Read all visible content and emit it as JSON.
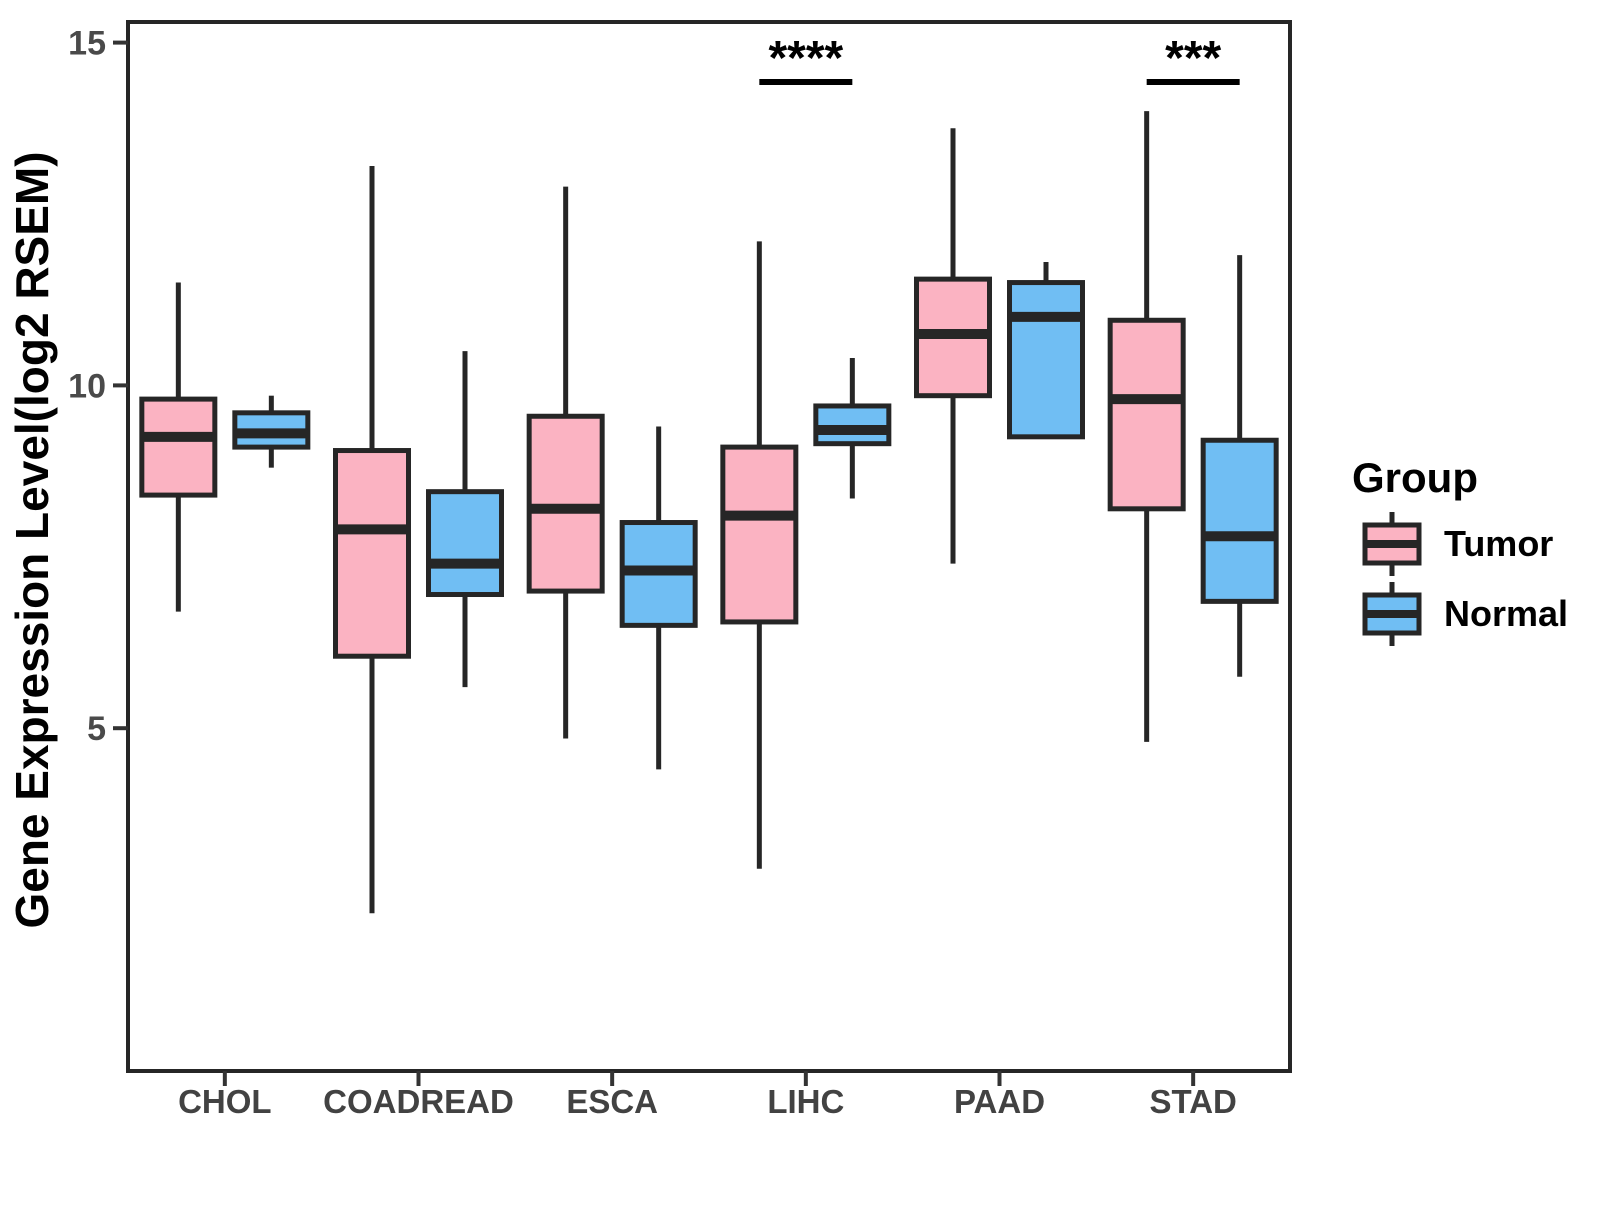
{
  "chart_data": {
    "type": "boxplot",
    "title": "",
    "xlabel": "",
    "ylabel": "Gene Expression Level(log2 RSEM)",
    "grid": false,
    "ylim": [
      0,
      15.3
    ],
    "yticks": [
      5,
      10,
      15
    ],
    "categories": [
      "CHOL",
      "COADREAD",
      "ESCA",
      "LIHC",
      "PAAD",
      "STAD"
    ],
    "groups": [
      {
        "name": "Tumor",
        "fill": "#FBB3C2"
      },
      {
        "name": "Normal",
        "fill": "#70BEF3"
      }
    ],
    "outline_color": "#262626",
    "boxes": [
      {
        "category": "CHOL",
        "group": "Tumor",
        "low": 6.7,
        "q1": 8.4,
        "median": 9.25,
        "q3": 9.8,
        "high": 11.5
      },
      {
        "category": "CHOL",
        "group": "Normal",
        "low": 8.8,
        "q1": 9.1,
        "median": 9.3,
        "q3": 9.6,
        "high": 9.85
      },
      {
        "category": "COADREAD",
        "group": "Tumor",
        "low": 2.3,
        "q1": 6.05,
        "median": 7.9,
        "q3": 9.05,
        "high": 13.2
      },
      {
        "category": "COADREAD",
        "group": "Normal",
        "low": 5.6,
        "q1": 6.95,
        "median": 7.4,
        "q3": 8.45,
        "high": 10.5
      },
      {
        "category": "ESCA",
        "group": "Tumor",
        "low": 4.85,
        "q1": 7.0,
        "median": 8.2,
        "q3": 9.55,
        "high": 12.9
      },
      {
        "category": "ESCA",
        "group": "Normal",
        "low": 4.4,
        "q1": 6.5,
        "median": 7.3,
        "q3": 8.0,
        "high": 9.4
      },
      {
        "category": "LIHC",
        "group": "Tumor",
        "low": 2.95,
        "q1": 6.55,
        "median": 8.1,
        "q3": 9.1,
        "high": 12.1
      },
      {
        "category": "LIHC",
        "group": "Normal",
        "low": 8.35,
        "q1": 9.15,
        "median": 9.35,
        "q3": 9.7,
        "high": 10.4
      },
      {
        "category": "PAAD",
        "group": "Tumor",
        "low": 7.4,
        "q1": 9.85,
        "median": 10.75,
        "q3": 11.55,
        "high": 13.75
      },
      {
        "category": "PAAD",
        "group": "Normal",
        "low": 9.25,
        "q1": 9.25,
        "median": 11.0,
        "q3": 11.5,
        "high": 11.8
      },
      {
        "category": "STAD",
        "group": "Tumor",
        "low": 4.8,
        "q1": 8.2,
        "median": 9.8,
        "q3": 10.95,
        "high": 14.0
      },
      {
        "category": "STAD",
        "group": "Normal",
        "low": 5.75,
        "q1": 6.85,
        "median": 7.8,
        "q3": 9.2,
        "high": 11.9
      }
    ],
    "annotations": [
      {
        "category": "LIHC",
        "label": "****"
      },
      {
        "category": "STAD",
        "label": "***"
      }
    ],
    "legend": {
      "title": "Group",
      "position": "right",
      "entries": [
        "Tumor",
        "Normal"
      ]
    }
  }
}
